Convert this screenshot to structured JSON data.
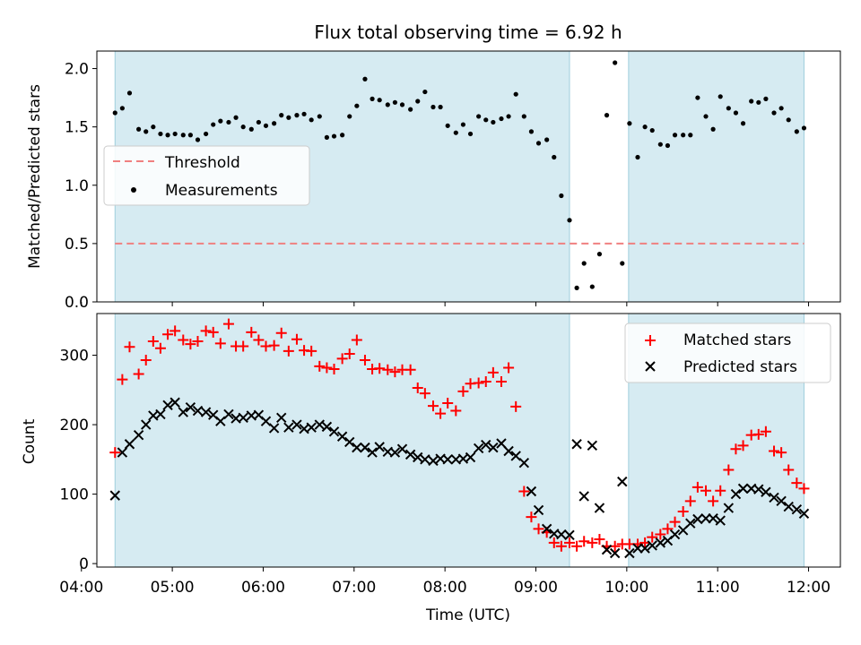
{
  "chart_data": [
    {
      "type": "scatter",
      "title": "Flux total observing time = 6.92 h",
      "ylabel": "Matched/Predicted stars",
      "xlabel": "",
      "xlim": [
        4.17,
        12.35
      ],
      "ylim": [
        0,
        2.15
      ],
      "yticks": [
        0.0,
        0.5,
        1.0,
        1.5,
        2.0
      ],
      "ytick_labels": [
        "0.0",
        "0.5",
        "1.0",
        "1.5",
        "2.0"
      ],
      "shaded_intervals": [
        [
          4.37,
          9.37
        ],
        [
          10.02,
          11.95
        ]
      ],
      "threshold": 0.5,
      "legend": {
        "position": "center-left",
        "entries": [
          "Threshold",
          "Measurements"
        ]
      },
      "series": [
        {
          "name": "Measurements",
          "marker": "dot",
          "color": "#000000",
          "x": [
            4.37,
            4.45,
            4.53,
            4.63,
            4.71,
            4.79,
            4.87,
            4.95,
            5.03,
            5.12,
            5.2,
            5.28,
            5.37,
            5.45,
            5.53,
            5.62,
            5.7,
            5.78,
            5.87,
            5.95,
            6.03,
            6.12,
            6.2,
            6.28,
            6.37,
            6.45,
            6.53,
            6.62,
            6.7,
            6.78,
            6.87,
            6.95,
            7.03,
            7.12,
            7.2,
            7.28,
            7.37,
            7.45,
            7.53,
            7.62,
            7.7,
            7.78,
            7.87,
            7.95,
            8.03,
            8.12,
            8.2,
            8.28,
            8.37,
            8.45,
            8.53,
            8.62,
            8.7,
            8.78,
            8.87,
            8.95,
            9.03,
            9.12,
            9.2,
            9.28,
            9.37,
            9.45,
            9.53,
            9.62,
            9.7,
            9.78,
            9.87,
            9.95,
            10.03,
            10.12,
            10.2,
            10.28,
            10.37,
            10.45,
            10.53,
            10.62,
            10.7,
            10.78,
            10.87,
            10.95,
            11.03,
            11.12,
            11.2,
            11.28,
            11.37,
            11.45,
            11.53,
            11.62,
            11.7,
            11.78,
            11.87,
            11.95
          ],
          "y": [
            1.62,
            1.66,
            1.79,
            1.48,
            1.46,
            1.5,
            1.44,
            1.43,
            1.44,
            1.43,
            1.43,
            1.39,
            1.44,
            1.52,
            1.55,
            1.54,
            1.58,
            1.5,
            1.48,
            1.54,
            1.51,
            1.53,
            1.6,
            1.58,
            1.6,
            1.61,
            1.56,
            1.59,
            1.41,
            1.42,
            1.43,
            1.59,
            1.68,
            1.91,
            1.74,
            1.73,
            1.69,
            1.71,
            1.69,
            1.65,
            1.72,
            1.8,
            1.67,
            1.67,
            1.51,
            1.45,
            1.52,
            1.44,
            1.59,
            1.56,
            1.54,
            1.57,
            1.59,
            1.78,
            1.59,
            1.46,
            1.36,
            1.39,
            1.24,
            0.91,
            0.7,
            0.12,
            0.33,
            0.13,
            0.41,
            1.6,
            2.05,
            0.33,
            1.53,
            1.24,
            1.5,
            1.47,
            1.35,
            1.34,
            1.43,
            1.43,
            1.43,
            1.75,
            1.59,
            1.48,
            1.76,
            1.66,
            1.62,
            1.53,
            1.72,
            1.71,
            1.74,
            1.62,
            1.66,
            1.56,
            1.46,
            1.49
          ]
        }
      ]
    },
    {
      "type": "scatter",
      "title": "",
      "ylabel": "Count",
      "xlabel": "Time (UTC)",
      "xlim": [
        4.17,
        12.35
      ],
      "ylim": [
        -5,
        360
      ],
      "xticks": [
        4,
        5,
        6,
        7,
        8,
        9,
        10,
        11,
        12
      ],
      "xtick_labels": [
        "04:00",
        "05:00",
        "06:00",
        "07:00",
        "08:00",
        "09:00",
        "10:00",
        "11:00",
        "12:00"
      ],
      "yticks": [
        0,
        100,
        200,
        300
      ],
      "ytick_labels": [
        "0",
        "100",
        "200",
        "300"
      ],
      "shaded_intervals": [
        [
          4.37,
          9.37
        ],
        [
          10.02,
          11.95
        ]
      ],
      "legend": {
        "position": "top-right",
        "entries": [
          "Matched stars",
          "Predicted stars"
        ]
      },
      "series": [
        {
          "name": "Matched stars",
          "marker": "plus",
          "color": "#ff0000",
          "x": [
            4.37,
            4.45,
            4.53,
            4.63,
            4.71,
            4.79,
            4.87,
            4.95,
            5.03,
            5.12,
            5.2,
            5.28,
            5.37,
            5.45,
            5.53,
            5.62,
            5.7,
            5.78,
            5.87,
            5.95,
            6.03,
            6.12,
            6.2,
            6.28,
            6.37,
            6.45,
            6.53,
            6.62,
            6.7,
            6.78,
            6.87,
            6.95,
            7.03,
            7.12,
            7.2,
            7.28,
            7.37,
            7.45,
            7.53,
            7.62,
            7.7,
            7.78,
            7.87,
            7.95,
            8.03,
            8.12,
            8.2,
            8.28,
            8.37,
            8.45,
            8.53,
            8.62,
            8.7,
            8.78,
            8.87,
            8.95,
            9.03,
            9.12,
            9.2,
            9.28,
            9.37,
            9.45,
            9.53,
            9.62,
            9.7,
            9.78,
            9.87,
            9.95,
            10.03,
            10.12,
            10.2,
            10.28,
            10.37,
            10.45,
            10.53,
            10.62,
            10.7,
            10.78,
            10.87,
            10.95,
            11.03,
            11.12,
            11.2,
            11.28,
            11.37,
            11.45,
            11.53,
            11.62,
            11.7,
            11.78,
            11.87,
            11.95
          ],
          "y": [
            160,
            265,
            312,
            273,
            293,
            320,
            310,
            330,
            335,
            322,
            316,
            320,
            335,
            333,
            317,
            345,
            313,
            313,
            333,
            322,
            313,
            314,
            332,
            306,
            323,
            307,
            306,
            284,
            282,
            280,
            295,
            302,
            322,
            293,
            280,
            281,
            279,
            276,
            279,
            279,
            253,
            245,
            227,
            216,
            231,
            220,
            248,
            259,
            260,
            262,
            275,
            262,
            282,
            226,
            104,
            67,
            50,
            45,
            30,
            25,
            30,
            25,
            32,
            30,
            35,
            25,
            25,
            28,
            28,
            28,
            30,
            38,
            42,
            50,
            60,
            75,
            90,
            110,
            105,
            90,
            105,
            135,
            165,
            170,
            185,
            186,
            190,
            162,
            160,
            135,
            116,
            108
          ]
        },
        {
          "name": "Predicted stars",
          "marker": "x",
          "color": "#000000",
          "x": [
            4.37,
            4.45,
            4.53,
            4.63,
            4.71,
            4.79,
            4.87,
            4.95,
            5.03,
            5.12,
            5.2,
            5.28,
            5.37,
            5.45,
            5.53,
            5.62,
            5.7,
            5.78,
            5.87,
            5.95,
            6.03,
            6.12,
            6.2,
            6.28,
            6.37,
            6.45,
            6.53,
            6.62,
            6.7,
            6.78,
            6.87,
            6.95,
            7.03,
            7.12,
            7.2,
            7.28,
            7.37,
            7.45,
            7.53,
            7.62,
            7.7,
            7.78,
            7.87,
            7.95,
            8.03,
            8.12,
            8.2,
            8.28,
            8.37,
            8.45,
            8.53,
            8.62,
            8.7,
            8.78,
            8.87,
            8.95,
            9.03,
            9.12,
            9.2,
            9.28,
            9.37,
            9.45,
            9.53,
            9.62,
            9.7,
            9.78,
            9.87,
            9.95,
            10.03,
            10.12,
            10.2,
            10.28,
            10.37,
            10.45,
            10.53,
            10.62,
            10.7,
            10.78,
            10.87,
            10.95,
            11.03,
            11.12,
            11.2,
            11.28,
            11.37,
            11.45,
            11.53,
            11.62,
            11.7,
            11.78,
            11.87,
            11.95
          ],
          "y": [
            98,
            160,
            172,
            185,
            200,
            213,
            215,
            228,
            232,
            218,
            225,
            220,
            218,
            214,
            205,
            215,
            209,
            210,
            213,
            214,
            205,
            195,
            210,
            196,
            200,
            194,
            196,
            200,
            197,
            190,
            183,
            175,
            167,
            167,
            160,
            168,
            161,
            160,
            165,
            157,
            153,
            150,
            148,
            151,
            150,
            150,
            151,
            153,
            166,
            171,
            167,
            173,
            162,
            155,
            145,
            104,
            77,
            50,
            43,
            42,
            41,
            172,
            97,
            170,
            80,
            20,
            15,
            118,
            15,
            22,
            22,
            26,
            30,
            33,
            42,
            48,
            58,
            64,
            65,
            65,
            62,
            80,
            100,
            108,
            108,
            107,
            103,
            95,
            90,
            82,
            78,
            72
          ]
        }
      ]
    }
  ]
}
